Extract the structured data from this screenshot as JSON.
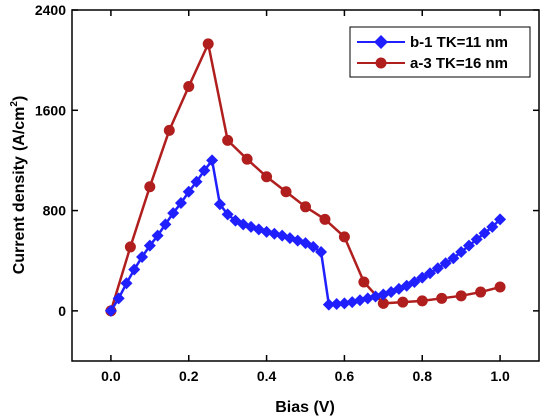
{
  "chart_data": {
    "type": "line",
    "xlabel": "Bias (V)",
    "ylabel": "Current density",
    "ylabel_unit_prefix": "(A/cm",
    "ylabel_unit_exp": "2",
    "ylabel_unit_suffix": ")",
    "xlim": [
      -0.1,
      1.1
    ],
    "ylim": [
      -400,
      2400
    ],
    "x_ticks": [
      0.0,
      0.2,
      0.4,
      0.6,
      0.8,
      1.0
    ],
    "x_tick_labels": [
      "0.0",
      "0.2",
      "0.4",
      "0.6",
      "0.8",
      "1.0"
    ],
    "y_ticks": [
      0,
      800,
      1600,
      2400
    ],
    "y_tick_labels": [
      "0",
      "800",
      "1600",
      "2400"
    ],
    "grid": false,
    "legend_position": "top-right",
    "series": [
      {
        "name": "b-1 TK=11 nm",
        "color": "#1f1fff",
        "marker": "diamond",
        "x": [
          0.0,
          0.02,
          0.04,
          0.06,
          0.08,
          0.1,
          0.12,
          0.14,
          0.16,
          0.18,
          0.2,
          0.22,
          0.24,
          0.26,
          0.28,
          0.3,
          0.32,
          0.34,
          0.36,
          0.38,
          0.4,
          0.42,
          0.44,
          0.46,
          0.48,
          0.5,
          0.52,
          0.54,
          0.56,
          0.58,
          0.6,
          0.62,
          0.64,
          0.66,
          0.68,
          0.7,
          0.72,
          0.74,
          0.76,
          0.78,
          0.8,
          0.82,
          0.84,
          0.86,
          0.88,
          0.9,
          0.92,
          0.94,
          0.96,
          0.98,
          1.0
        ],
        "y": [
          0,
          100,
          220,
          330,
          430,
          520,
          600,
          690,
          780,
          860,
          950,
          1030,
          1120,
          1200,
          850,
          770,
          720,
          690,
          670,
          650,
          630,
          615,
          600,
          580,
          560,
          540,
          510,
          470,
          50,
          55,
          60,
          70,
          85,
          100,
          115,
          130,
          150,
          175,
          200,
          230,
          265,
          300,
          340,
          380,
          420,
          470,
          520,
          570,
          620,
          670,
          730
        ]
      },
      {
        "name": "a-3 TK=16 nm",
        "color": "#b01e1e",
        "marker": "circle",
        "x": [
          0.0,
          0.05,
          0.1,
          0.15,
          0.2,
          0.25,
          0.3,
          0.35,
          0.4,
          0.45,
          0.5,
          0.55,
          0.6,
          0.65,
          0.7,
          0.75,
          0.8,
          0.85,
          0.9,
          0.95,
          1.0
        ],
        "y": [
          0,
          510,
          990,
          1440,
          1790,
          2130,
          1360,
          1210,
          1070,
          950,
          830,
          730,
          590,
          230,
          60,
          70,
          80,
          100,
          120,
          150,
          190
        ]
      }
    ]
  }
}
